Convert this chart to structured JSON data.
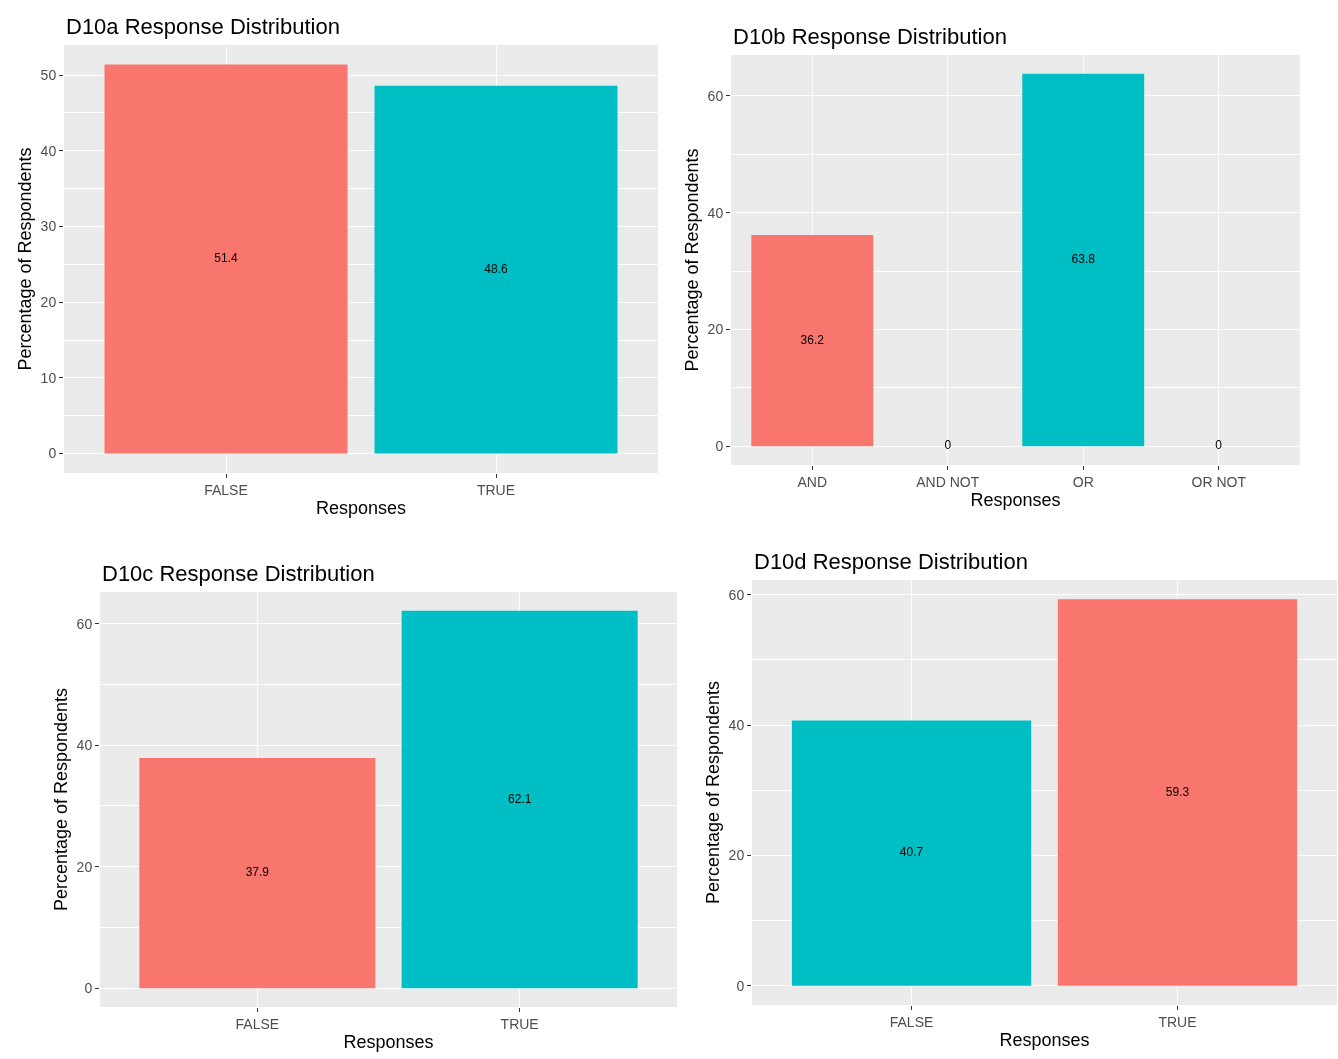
{
  "chart_data": [
    {
      "type": "bar",
      "title": "D10a Response Distribution",
      "xlabel": "Responses",
      "ylabel": "Percentage of Respondents",
      "categories": [
        "FALSE",
        "TRUE"
      ],
      "values": [
        51.4,
        48.6
      ],
      "colors": [
        "#f8766d",
        "#00bfc4"
      ],
      "ylim": [
        -2.57,
        53.97
      ],
      "yticks": [
        0,
        10,
        20,
        30,
        40,
        50
      ],
      "grid": true,
      "data_labels": true
    },
    {
      "type": "bar",
      "title": "D10b Response Distribution",
      "xlabel": "Responses",
      "ylabel": "Percentage of Respondents",
      "categories": [
        "AND",
        "AND NOT",
        "OR",
        "OR NOT"
      ],
      "values": [
        36.2,
        0,
        63.8,
        0
      ],
      "colors": [
        "#f8766d",
        "#f8766d",
        "#00bfc4",
        "#00bfc4"
      ],
      "ylim": [
        -3.19,
        66.99
      ],
      "yticks": [
        0,
        20,
        40,
        60
      ],
      "grid": true,
      "data_labels": true
    },
    {
      "type": "bar",
      "title": "D10c Response Distribution",
      "xlabel": "Responses",
      "ylabel": "Percentage of Respondents",
      "categories": [
        "FALSE",
        "TRUE"
      ],
      "values": [
        37.9,
        62.1
      ],
      "colors": [
        "#f8766d",
        "#00bfc4"
      ],
      "ylim": [
        -3.1,
        65.2
      ],
      "yticks": [
        0,
        20,
        40,
        60
      ],
      "grid": true,
      "data_labels": true
    },
    {
      "type": "bar",
      "title": "D10d Response Distribution",
      "xlabel": "Responses",
      "ylabel": "Percentage of Respondents",
      "categories": [
        "FALSE",
        "TRUE"
      ],
      "values": [
        40.7,
        59.3
      ],
      "colors": [
        "#00bfc4",
        "#f8766d"
      ],
      "ylim": [
        -2.97,
        62.27
      ],
      "yticks": [
        0,
        20,
        40,
        60
      ],
      "grid": true,
      "data_labels": true
    }
  ]
}
